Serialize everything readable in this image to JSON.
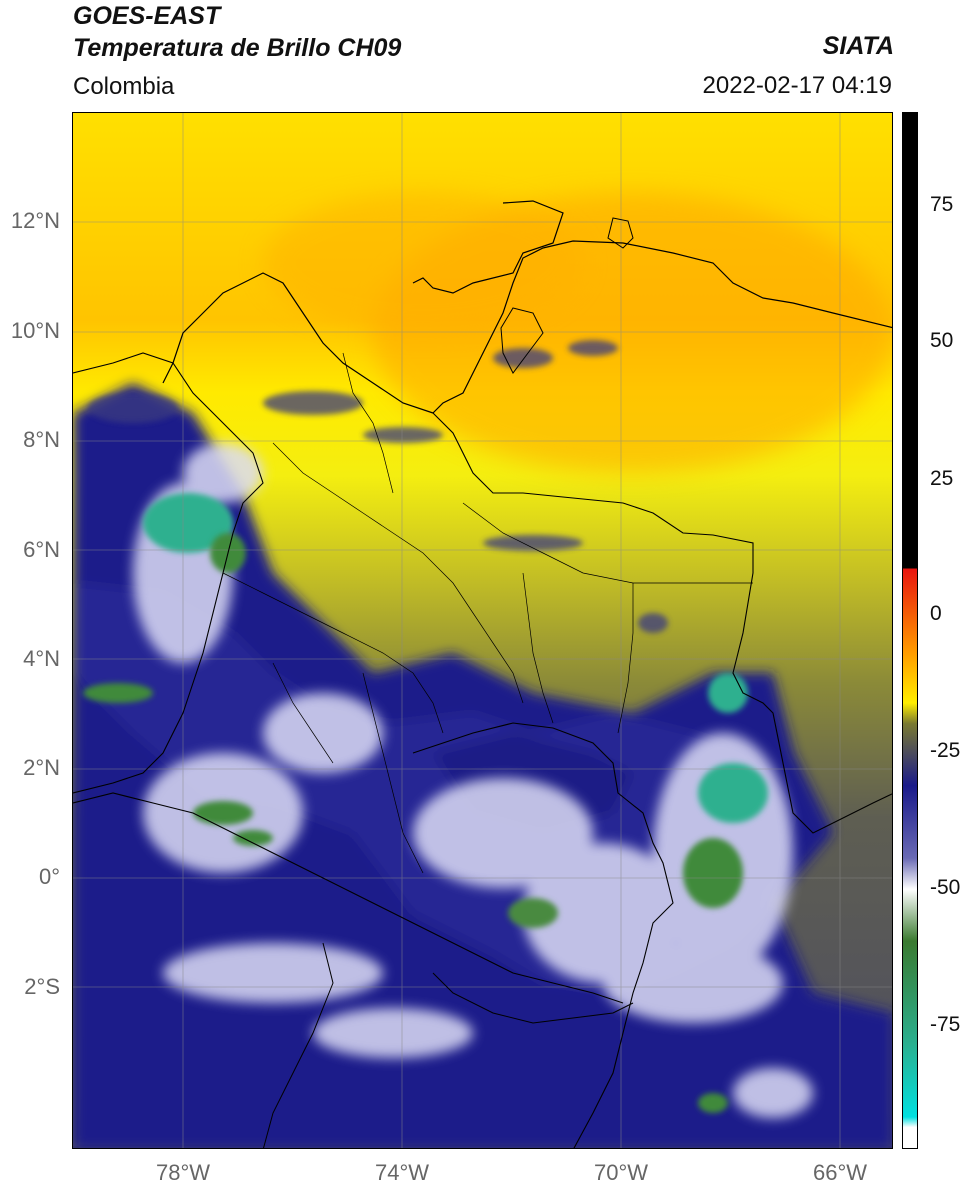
{
  "header": {
    "satellite": "GOES-EAST",
    "product": "Temperatura de Brillo CH09",
    "region": "Colombia",
    "agency": "SIATA",
    "datetime": "2022-02-17 04:19"
  },
  "axes": {
    "lat_labels": [
      "12°N",
      "10°N",
      "8°N",
      "6°N",
      "4°N",
      "2°N",
      "0°",
      "2°S"
    ],
    "lon_labels": [
      "78°W",
      "74°W",
      "70°W",
      "66°W"
    ]
  },
  "colorbar": {
    "tick_labels": [
      "75",
      "50",
      "25",
      "0",
      "-25",
      "-50",
      "-75"
    ],
    "colors": {
      "black": "#000000",
      "red": "#e8140f",
      "orange": "#ff9900",
      "yellow": "#ffee00",
      "olive": "#7a7a30",
      "gray": "#4a4a60",
      "navy": "#1a1a8a",
      "white": "#ffffff",
      "green": "#3a7a30",
      "teal": "#2ab090",
      "cyan": "#00e0e0"
    }
  }
}
